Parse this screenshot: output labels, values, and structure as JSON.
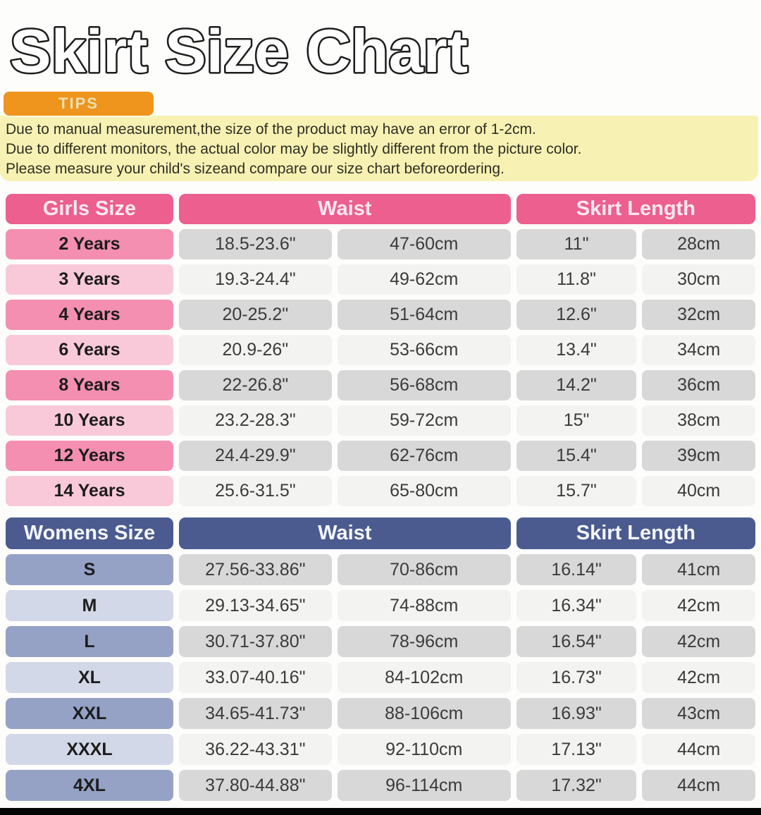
{
  "title": "Skirt Size Chart",
  "tips": {
    "label": "TIPS",
    "lines": [
      "Due to manual measurement,the size of the product may have an error of 1-2cm.",
      "Due to different monitors, the actual color may be slightly different from the picture color.",
      "Please measure your child's sizeand compare our size chart beforeordering."
    ]
  },
  "colors": {
    "pink_header": "#ec5f8f",
    "pink_row_dark": "#f48fb1",
    "pink_row_light": "#f9c9da",
    "navy_header": "#4b5b90",
    "slate_row_dark": "#95a2c6",
    "slate_row_light": "#d2d8e8",
    "value_cell_dark": "#d8d8d8",
    "value_cell_light": "#f3f3f1",
    "tips_orange": "#ef941c",
    "tips_yellow": "#f7f2b4",
    "bottom_bar": "#050505"
  },
  "chart_data": [
    {
      "type": "table",
      "name": "girls-size-chart",
      "header": {
        "size": "Girls Size",
        "waist": "Waist",
        "length": "Skirt Length"
      },
      "rows": [
        {
          "size": "2 Years",
          "waist_in": "18.5-23.6\"",
          "waist_cm": "47-60cm",
          "length_in": "11\"",
          "length_cm": "28cm"
        },
        {
          "size": "3 Years",
          "waist_in": "19.3-24.4\"",
          "waist_cm": "49-62cm",
          "length_in": "11.8\"",
          "length_cm": "30cm"
        },
        {
          "size": "4 Years",
          "waist_in": "20-25.2\"",
          "waist_cm": "51-64cm",
          "length_in": "12.6\"",
          "length_cm": "32cm"
        },
        {
          "size": "6 Years",
          "waist_in": "20.9-26\"",
          "waist_cm": "53-66cm",
          "length_in": "13.4\"",
          "length_cm": "34cm"
        },
        {
          "size": "8 Years",
          "waist_in": "22-26.8\"",
          "waist_cm": "56-68cm",
          "length_in": "14.2\"",
          "length_cm": "36cm"
        },
        {
          "size": "10 Years",
          "waist_in": "23.2-28.3\"",
          "waist_cm": "59-72cm",
          "length_in": "15\"",
          "length_cm": "38cm"
        },
        {
          "size": "12 Years",
          "waist_in": "24.4-29.9\"",
          "waist_cm": "62-76cm",
          "length_in": "15.4\"",
          "length_cm": "39cm"
        },
        {
          "size": "14 Years",
          "waist_in": "25.6-31.5\"",
          "waist_cm": "65-80cm",
          "length_in": "15.7\"",
          "length_cm": "40cm"
        }
      ]
    },
    {
      "type": "table",
      "name": "womens-size-chart",
      "header": {
        "size": "Womens Size",
        "waist": "Waist",
        "length": "Skirt Length"
      },
      "rows": [
        {
          "size": "S",
          "waist_in": "27.56-33.86\"",
          "waist_cm": "70-86cm",
          "length_in": "16.14\"",
          "length_cm": "41cm"
        },
        {
          "size": "M",
          "waist_in": "29.13-34.65\"",
          "waist_cm": "74-88cm",
          "length_in": "16.34\"",
          "length_cm": "42cm"
        },
        {
          "size": "L",
          "waist_in": "30.71-37.80\"",
          "waist_cm": "78-96cm",
          "length_in": "16.54\"",
          "length_cm": "42cm"
        },
        {
          "size": "XL",
          "waist_in": "33.07-40.16\"",
          "waist_cm": "84-102cm",
          "length_in": "16.73\"",
          "length_cm": "42cm"
        },
        {
          "size": "XXL",
          "waist_in": "34.65-41.73\"",
          "waist_cm": "88-106cm",
          "length_in": "16.93\"",
          "length_cm": "43cm"
        },
        {
          "size": "XXXL",
          "waist_in": "36.22-43.31\"",
          "waist_cm": "92-110cm",
          "length_in": "17.13\"",
          "length_cm": "44cm"
        },
        {
          "size": "4XL",
          "waist_in": "37.80-44.88\"",
          "waist_cm": "96-114cm",
          "length_in": "17.32\"",
          "length_cm": "44cm"
        }
      ]
    }
  ]
}
